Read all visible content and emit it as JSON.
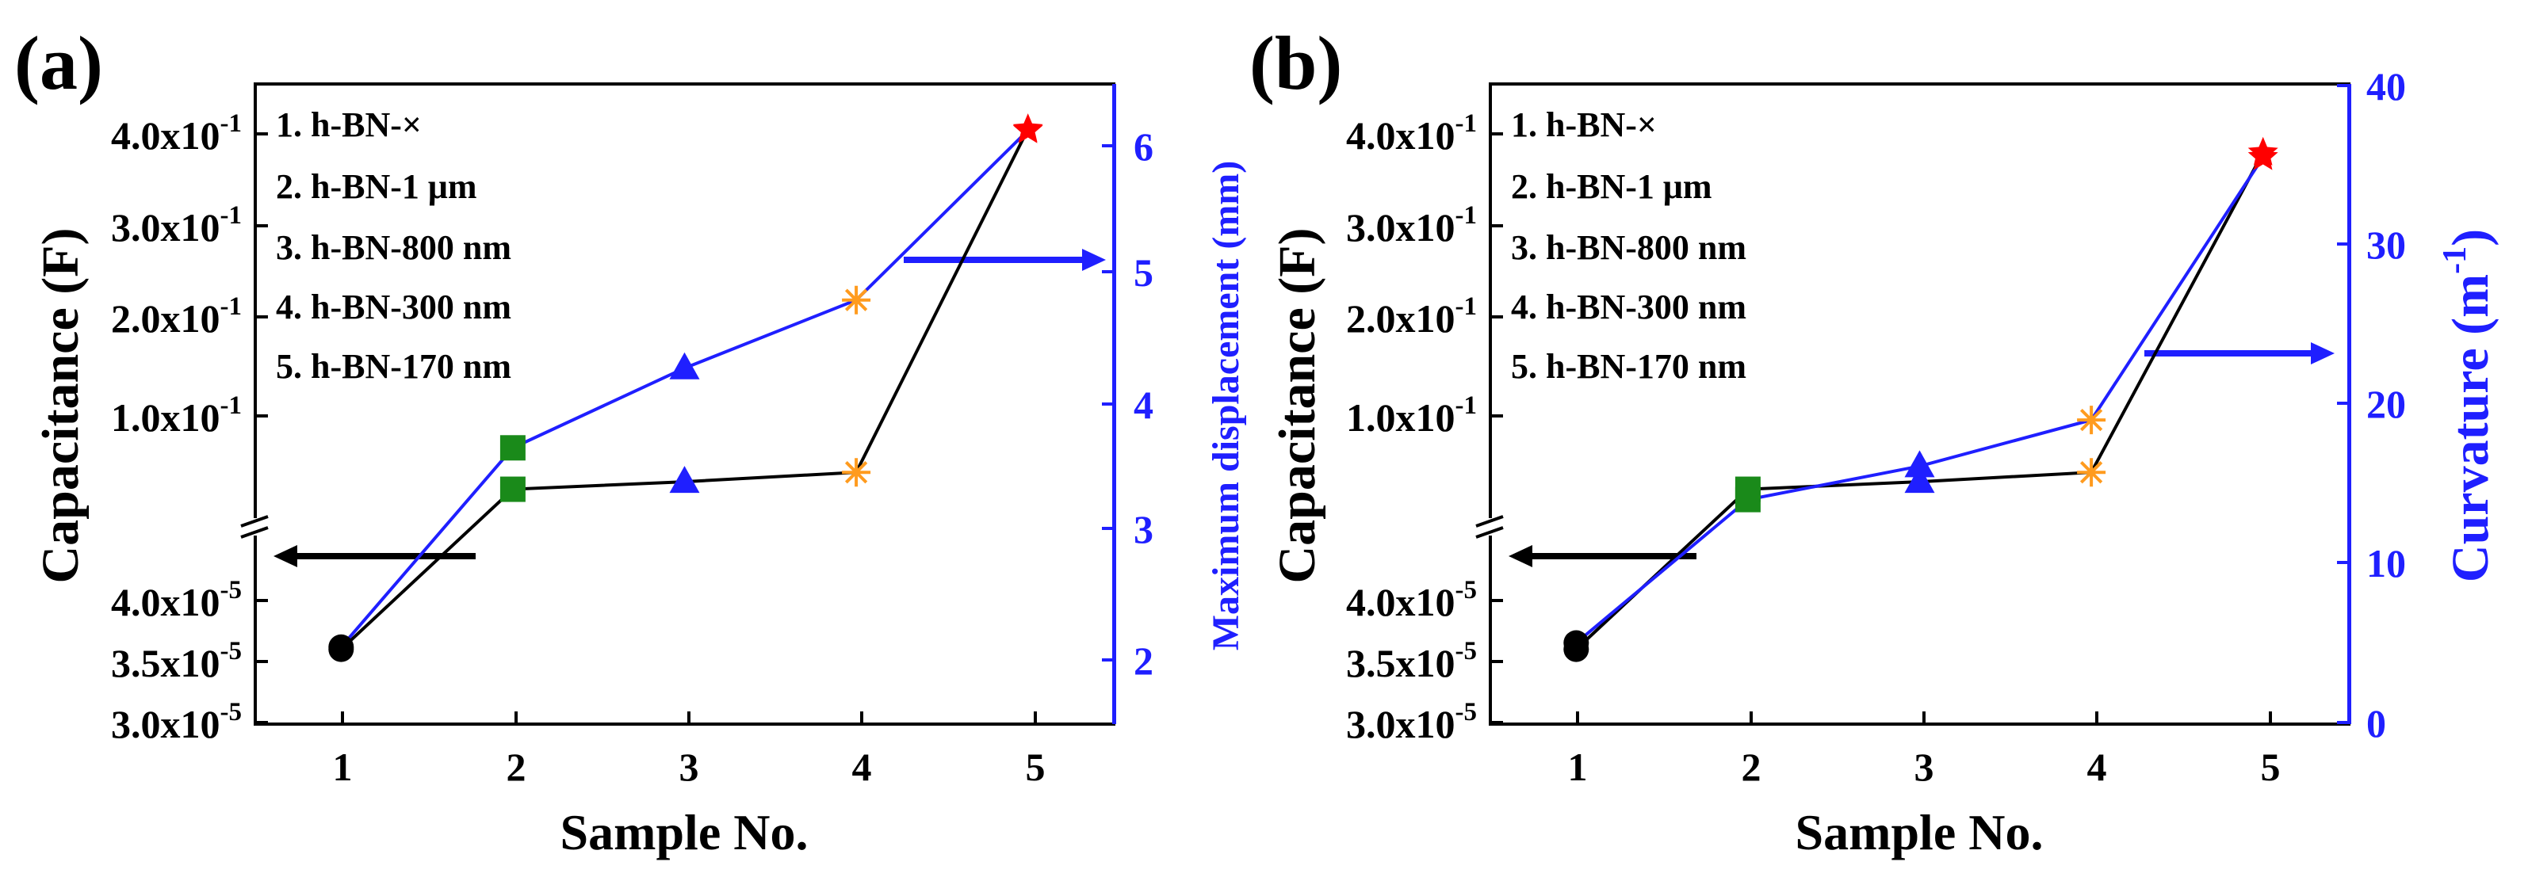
{
  "colors": {
    "capacitance": "#000000",
    "right_axis": "#1f1fff",
    "marker_1": "#000000",
    "marker_2": "#1a8a1a",
    "marker_3": "#1f1fff",
    "marker_4": "#ff9b1e",
    "marker_5": "#ff0000"
  },
  "shared": {
    "xlabel": "Sample No.",
    "ylabel": "Capacitance (F)",
    "x_ticks": [
      "1",
      "2",
      "3",
      "4",
      "5"
    ],
    "legend": [
      "1. h-BN-×",
      "2. h-BN-1 μm",
      "3. h-BN-800 nm",
      "4. h-BN-300 nm",
      "5. h-BN-170 nm"
    ],
    "y_upper_ticks": [
      {
        "mant": "1.0x10",
        "exp": "-1"
      },
      {
        "mant": "2.0x10",
        "exp": "-1"
      },
      {
        "mant": "3.0x10",
        "exp": "-1"
      },
      {
        "mant": "4.0x10",
        "exp": "-1"
      }
    ],
    "y_lower_ticks": [
      {
        "mant": "3.0x10",
        "exp": "-5"
      },
      {
        "mant": "3.5x10",
        "exp": "-5"
      },
      {
        "mant": "4.0x10",
        "exp": "-5"
      }
    ],
    "marker_shapes": [
      "circle",
      "square",
      "triangle",
      "asterisk",
      "star"
    ]
  },
  "chart_data": [
    {
      "panel_label": "(a)",
      "type": "line",
      "x": [
        1,
        2,
        3,
        4,
        5
      ],
      "xlim": [
        0.5,
        5.5
      ],
      "left_axis": {
        "label": "Capacitance (F)",
        "scale": "broken",
        "lower_range": [
          3e-05,
          4.4e-05
        ],
        "upper_range": [
          0.0,
          0.42
        ],
        "series": {
          "name": "Capacitance",
          "values": [
            3.6e-05,
            0.022,
            0.03,
            0.04,
            0.405
          ],
          "break_at_index": 1
        }
      },
      "right_axis": {
        "label": "Maximum displacement (mm)",
        "ylim": [
          1.5,
          6.5
        ],
        "ticks": [
          "2",
          "3",
          "4",
          "5",
          "6"
        ],
        "series": {
          "name": "Maximum displacement",
          "values": [
            2.1,
            3.65,
            4.27,
            4.8,
            6.12
          ]
        }
      },
      "annotations": [
        "arrow pointing to left axis",
        "arrow pointing to right axis"
      ]
    },
    {
      "panel_label": "(b)",
      "type": "line",
      "x": [
        1,
        2,
        3,
        4,
        5
      ],
      "xlim": [
        0.5,
        5.5
      ],
      "left_axis": {
        "label": "Capacitance (F)",
        "scale": "broken",
        "lower_range": [
          3e-05,
          4.4e-05
        ],
        "upper_range": [
          0.0,
          0.42
        ],
        "series": {
          "name": "Capacitance",
          "values": [
            3.6e-05,
            0.022,
            0.03,
            0.04,
            0.38
          ],
          "break_at_index": 1
        }
      },
      "right_axis": {
        "label": "Curvature (m",
        "label_sup": "-1",
        "label_end": ")",
        "ylim": [
          0,
          40
        ],
        "ticks": [
          "0",
          "10",
          "20",
          "30",
          "40"
        ],
        "series": {
          "name": "Curvature",
          "values": [
            5,
            14,
            16.1,
            19,
            35.5
          ]
        }
      },
      "annotations": [
        "arrow pointing to left axis",
        "arrow pointing to right axis"
      ]
    }
  ]
}
